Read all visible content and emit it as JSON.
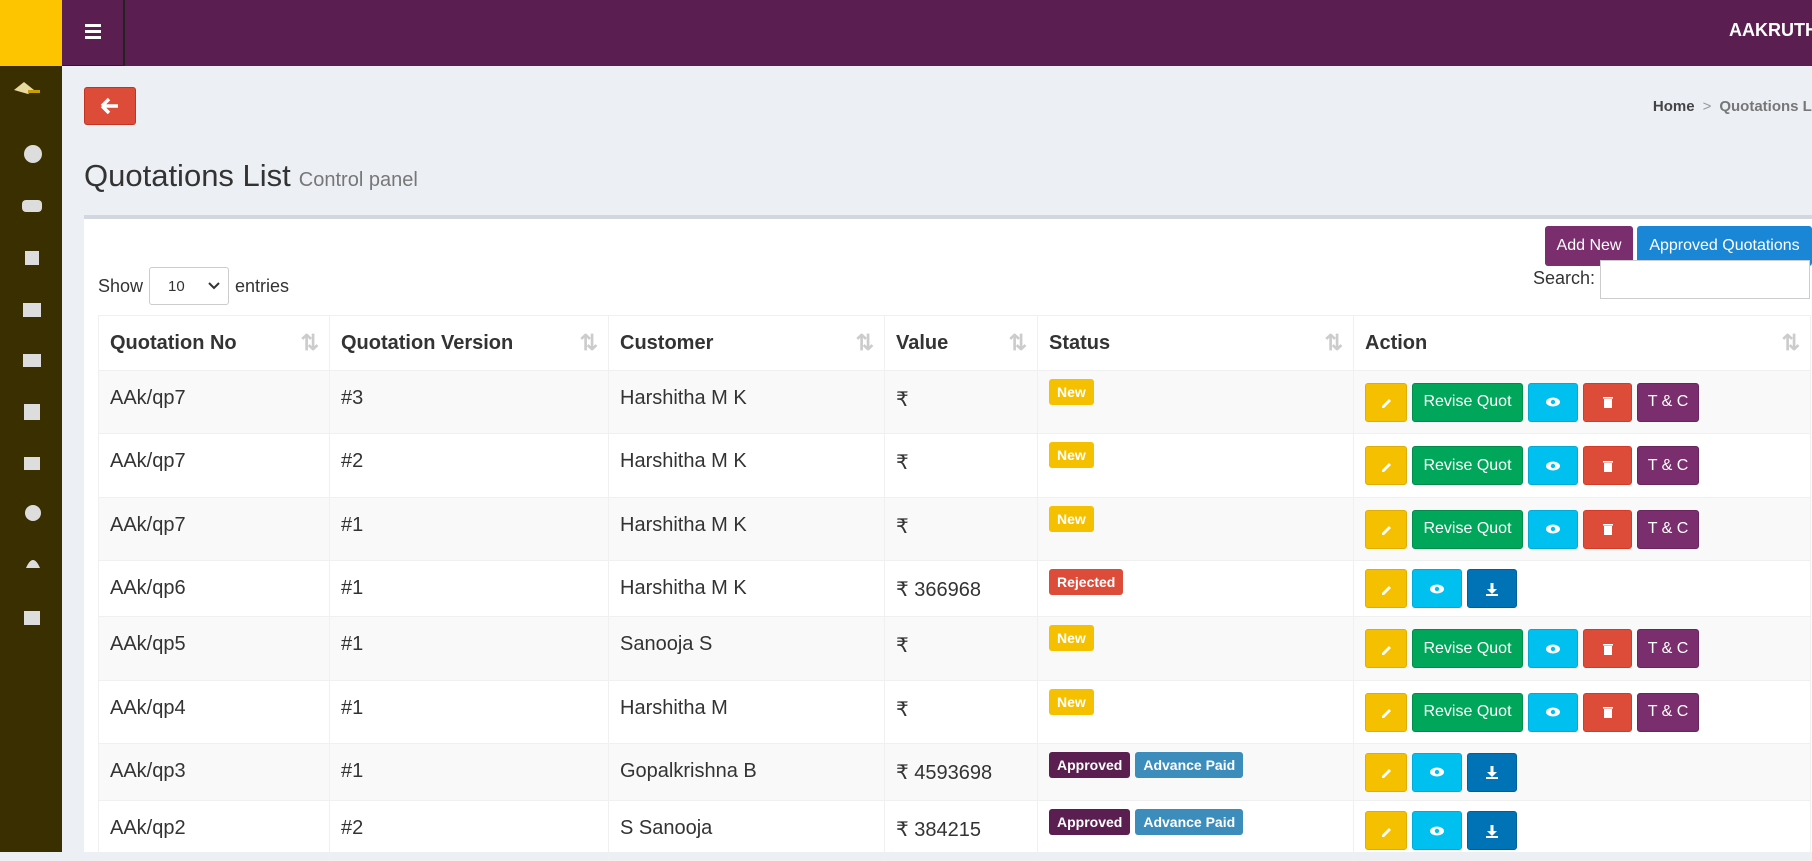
{
  "header": {
    "brand": "AAKRUTH"
  },
  "breadcrumb": {
    "home": "Home",
    "current": "Quotations Li"
  },
  "page": {
    "title": "Quotations List",
    "subtitle": "Control panel"
  },
  "toolbar": {
    "add_new": "Add New",
    "approved": "Approved Quotations",
    "show": "Show",
    "entries_value": "10",
    "entries": "entries",
    "search": "Search:"
  },
  "table": {
    "headers": [
      "Quotation No",
      "Quotation Version",
      "Customer",
      "Value",
      "Status",
      "Action"
    ],
    "rows": [
      {
        "quotation_no": "AAk/qp7",
        "version": "#3",
        "customer": "Harshitha M K",
        "value": "₹",
        "status": [
          "New"
        ],
        "actions": [
          "Revise Quot",
          "T & C"
        ]
      },
      {
        "quotation_no": "AAk/qp7",
        "version": "#2",
        "customer": "Harshitha M K",
        "value": "₹",
        "status": [
          "New"
        ],
        "actions": [
          "Revise Quot",
          "T & C"
        ]
      },
      {
        "quotation_no": "AAk/qp7",
        "version": "#1",
        "customer": "Harshitha M K",
        "value": "₹",
        "status": [
          "New"
        ],
        "actions": [
          "Revise Quot",
          "T & C"
        ]
      },
      {
        "quotation_no": "AAk/qp6",
        "version": "#1",
        "customer": "Harshitha M K",
        "value": "₹ 366968",
        "status": [
          "Rejected"
        ],
        "actions": []
      },
      {
        "quotation_no": "AAk/qp5",
        "version": "#1",
        "customer": "Sanooja S",
        "value": "₹",
        "status": [
          "New"
        ],
        "actions": [
          "Revise Quot",
          "T & C"
        ]
      },
      {
        "quotation_no": "AAk/qp4",
        "version": "#1",
        "customer": "Harshitha M",
        "value": "₹",
        "status": [
          "New"
        ],
        "actions": [
          "Revise Quot",
          "T & C"
        ]
      },
      {
        "quotation_no": "AAk/qp3",
        "version": "#1",
        "customer": "Gopalkrishna B",
        "value": "₹ 4593698",
        "status": [
          "Approved",
          "Advance Paid"
        ],
        "actions": []
      },
      {
        "quotation_no": "AAk/qp2",
        "version": "#2",
        "customer": "S Sanooja",
        "value": "₹ 384215",
        "status": [
          "Approved",
          "Advance Paid"
        ],
        "actions": []
      }
    ]
  }
}
